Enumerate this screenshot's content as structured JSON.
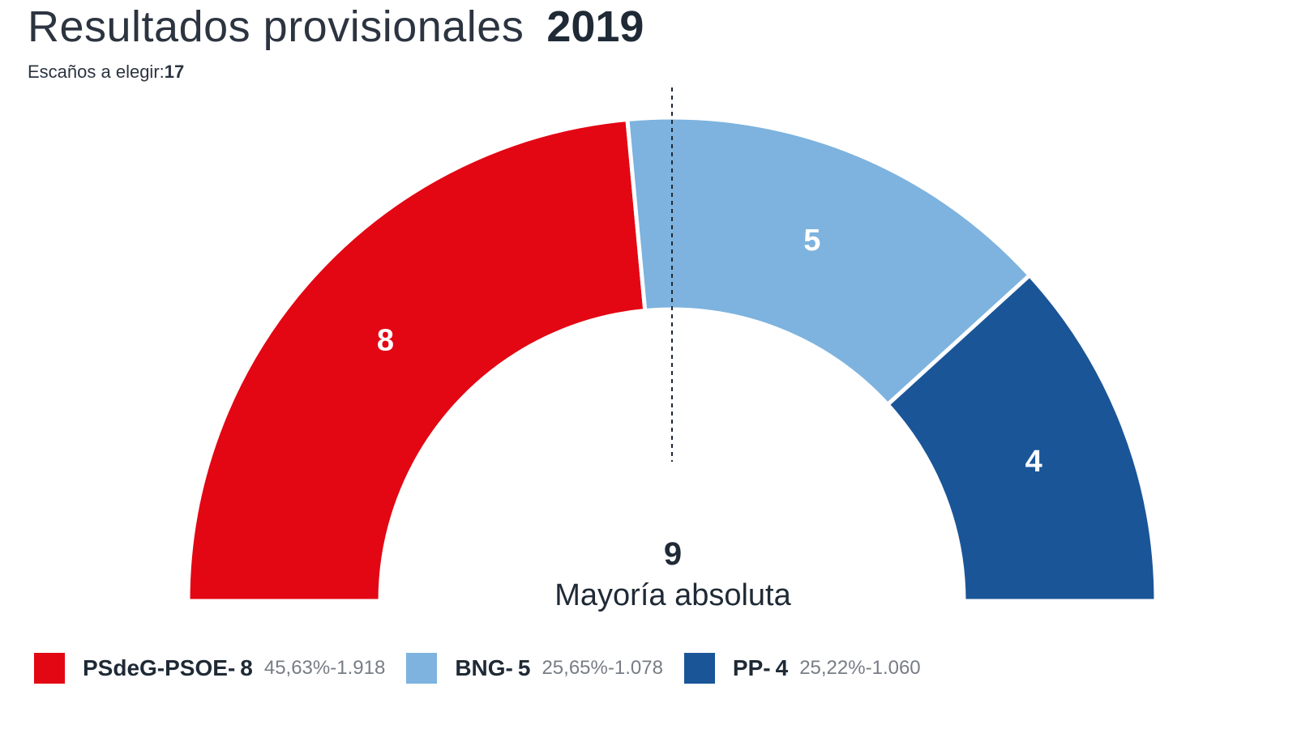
{
  "header": {
    "title": "Resultados provisionales",
    "year": "2019",
    "seats_label": "Escaños a elegir:",
    "seats_total": "17"
  },
  "colors": {
    "psoe": "#e30613",
    "bng": "#7db3de",
    "pp": "#1a5598",
    "separator": "#ffffff",
    "majority_line": "#1f2a36"
  },
  "chart_data": {
    "type": "pie",
    "variant": "parliament-half-donut",
    "total_seats": 17,
    "majority": 9,
    "majority_label": "Mayoría absoluta",
    "series": [
      {
        "name": "PSdeG-PSOE",
        "seats": 8,
        "seats_text": "8",
        "percent": "45,63%",
        "votes": "1.918",
        "color": "#e30613"
      },
      {
        "name": "BNG",
        "seats": 5,
        "seats_text": "5",
        "percent": "25,65%",
        "votes": "1.078",
        "color": "#7db3de"
      },
      {
        "name": "PP",
        "seats": 4,
        "seats_text": "4",
        "percent": "25,22%",
        "votes": "1.060",
        "color": "#1a5598"
      }
    ]
  },
  "majority": {
    "number": "9",
    "label": "Mayoría absoluta"
  },
  "legend": [
    {
      "name": "PSdeG-PSOE",
      "sep": "-",
      "seats": "8",
      "percent": "45,63%",
      "dash": "-",
      "votes": "1.918",
      "color": "#e30613"
    },
    {
      "name": "BNG",
      "sep": "-",
      "seats": "5",
      "percent": "25,65%",
      "dash": "-",
      "votes": "1.078",
      "color": "#7db3de"
    },
    {
      "name": "PP",
      "sep": "-",
      "seats": "4",
      "percent": "25,22%",
      "dash": "-",
      "votes": "1.060",
      "color": "#1a5598"
    }
  ]
}
